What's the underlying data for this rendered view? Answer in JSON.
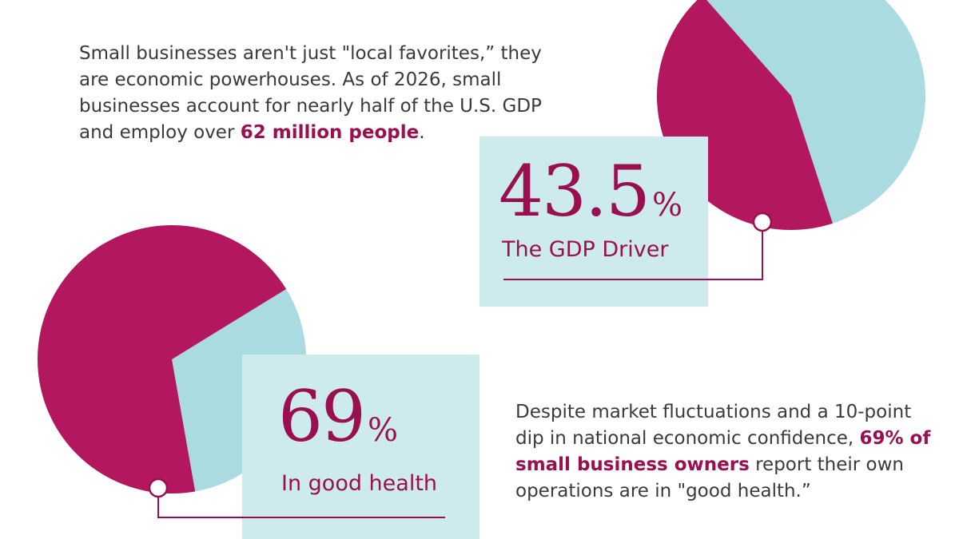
{
  "intro": {
    "before": "Small businesses aren't just \"local favorites,” they are economic powerhouses. As of 2026, small businesses account for nearly half of the U.S. GDP and employ over ",
    "highlight": "62 million people",
    "after": "."
  },
  "gdp_stat": {
    "value": "43.5",
    "percent_sign": "%",
    "label": "The GDP Driver",
    "share_percent": 43.5
  },
  "health_stat": {
    "value": "69",
    "percent_sign": "%",
    "label": "In good health",
    "share_percent": 69
  },
  "outro": {
    "before": "Despite market fluctuations and a 10-point dip in national economic confidence, ",
    "highlight": "69% of small business owners",
    "after": " report their own operations are in \"good health.”"
  },
  "colors": {
    "accent": "#9a0f4f",
    "pie_primary": "#b3185f",
    "pie_secondary": "#a9dbe0",
    "box_fill": "#cdeaec",
    "body_text": "#3a3a3a"
  }
}
